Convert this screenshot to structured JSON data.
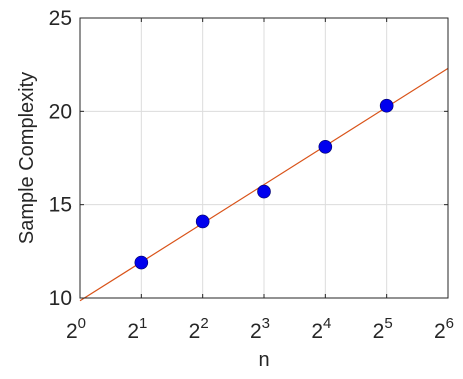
{
  "chart_data": {
    "type": "scatter",
    "title": "",
    "xlabel": "n",
    "ylabel": "Sample Complexity",
    "x_scale": "log2",
    "xlim": [
      1,
      64
    ],
    "ylim": [
      10,
      25
    ],
    "grid": true,
    "x_ticks": [
      {
        "value": 1,
        "base": "2",
        "exp": "0"
      },
      {
        "value": 2,
        "base": "2",
        "exp": "1"
      },
      {
        "value": 4,
        "base": "2",
        "exp": "2"
      },
      {
        "value": 8,
        "base": "2",
        "exp": "3"
      },
      {
        "value": 16,
        "base": "2",
        "exp": "4"
      },
      {
        "value": 32,
        "base": "2",
        "exp": "5"
      },
      {
        "value": 64,
        "base": "2",
        "exp": "6"
      }
    ],
    "y_ticks": [
      {
        "value": 10,
        "label": "10"
      },
      {
        "value": 15,
        "label": "15"
      },
      {
        "value": 20,
        "label": "20"
      },
      {
        "value": 25,
        "label": "25"
      }
    ],
    "series": [
      {
        "type": "scatter",
        "color": "#0000ee",
        "points": [
          {
            "x": 2,
            "y": 11.9
          },
          {
            "x": 4,
            "y": 14.1
          },
          {
            "x": 8,
            "y": 15.7
          },
          {
            "x": 16,
            "y": 18.1
          },
          {
            "x": 32,
            "y": 20.3
          }
        ]
      },
      {
        "type": "line",
        "color": "#d95319",
        "points": [
          {
            "x": 1,
            "y": 9.85
          },
          {
            "x": 64,
            "y": 22.3
          }
        ]
      }
    ]
  }
}
